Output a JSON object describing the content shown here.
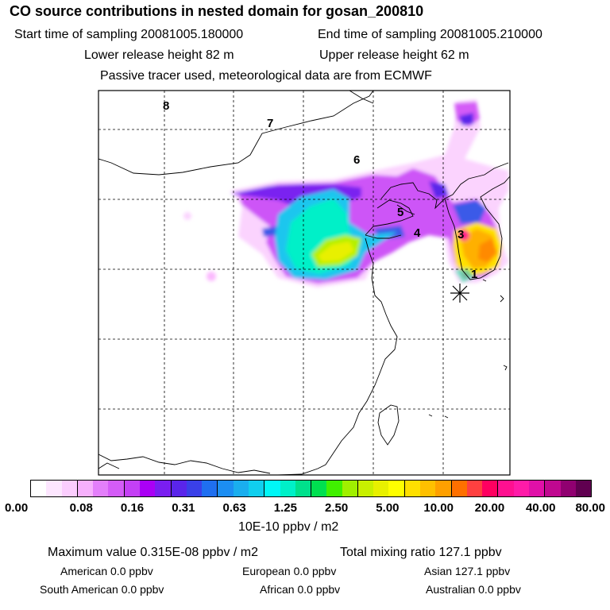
{
  "header": {
    "title": "CO  source contributions in nested domain for gosan_200810",
    "start_label": "Start time of sampling 20081005.180000",
    "end_label": "End time of sampling 20081005.210000",
    "lower_label": "Lower release height   82 m",
    "upper_label": "Upper release height   62 m",
    "tracer_note": "Passive tracer used, meteorological data are from ECMWF"
  },
  "map": {
    "time_markers": [
      "8",
      "7",
      "6",
      "5",
      "4",
      "3",
      "1"
    ],
    "receptor_icon": "asterisk-star"
  },
  "colorbar": {
    "colors": [
      "#ffffff",
      "#fde6ff",
      "#fbcdfe",
      "#f6b0fc",
      "#e37ffa",
      "#d45cf7",
      "#c440f5",
      "#aa00f5",
      "#7a1ef0",
      "#5a25ea",
      "#3a40e8",
      "#1f6ff0",
      "#1c8ef2",
      "#1aaeee",
      "#10cfee",
      "#00f7f7",
      "#00f0c8",
      "#00e08c",
      "#00e050",
      "#40f000",
      "#a0f000",
      "#c8f000",
      "#e8f000",
      "#ffff00",
      "#ffe000",
      "#ffc000",
      "#ffa000",
      "#ff7000",
      "#ff4040",
      "#ff0060",
      "#ff1090",
      "#ff1ba8",
      "#e010a8",
      "#c00890",
      "#900070",
      "#600050"
    ],
    "tick_labels": [
      "0.00",
      "0.08",
      "0.16",
      "0.31",
      "0.63",
      "1.25",
      "2.50",
      "5.00",
      "10.00",
      "20.00",
      "40.00",
      "80.00"
    ],
    "unit": "10E-10 ppbv / m2"
  },
  "footer": {
    "max_value": "Maximum value  0.315E-08 ppbv / m2",
    "total_mixing": "Total mixing ratio      127.1 ppbv",
    "american": "American         0.0 ppbv",
    "european": "European        0.0 ppbv",
    "asian": "Asian     127.1 ppbv",
    "south_american": "South American         0.0 ppbv",
    "african": "African         0.0 ppbv",
    "australian": "Australian         0.0 ppbv"
  }
}
